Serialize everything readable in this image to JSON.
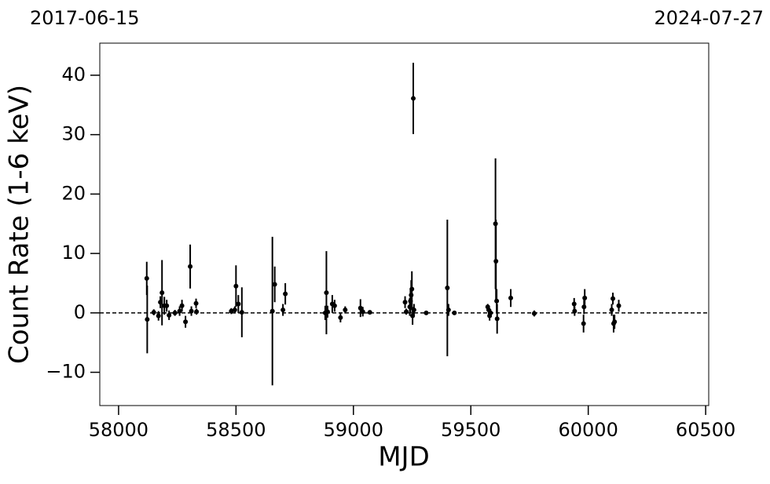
{
  "chart_data": {
    "type": "scatter",
    "xlabel": "MJD",
    "ylabel": "Count Rate (1-6 keV)",
    "annotations": [
      "2017-06-15",
      "2024-07-27"
    ],
    "xlim": [
      57920,
      60513
    ],
    "ylim": [
      -15.6,
      45.4
    ],
    "xticks": [
      58000,
      58500,
      59000,
      59500,
      60000,
      60500
    ],
    "yticks": [
      {
        "value": -10,
        "label": "−10"
      },
      0,
      10,
      20,
      30,
      40
    ],
    "hline": 0,
    "series": [
      {
        "color": "#000000",
        "x": [
          58120,
          58122,
          58150,
          58170,
          58178,
          58185,
          58195,
          58205,
          58215,
          58240,
          58260,
          58270,
          58285,
          58305,
          58310,
          58330,
          58332,
          58480,
          58495,
          58500,
          58510,
          58525,
          58655,
          58665,
          58700,
          58710,
          58880,
          58885,
          58890,
          58910,
          58920,
          58945,
          58965,
          59030,
          59040,
          59070,
          59220,
          59225,
          59240,
          59243,
          59246,
          59249,
          59252,
          59255,
          59258,
          59310,
          59400,
          59405,
          59430,
          59572,
          59576,
          59580,
          59584,
          59605,
          59607,
          59610,
          59612,
          59670,
          59770,
          59940,
          59942,
          59980,
          59982,
          59985,
          60100,
          60105,
          60108,
          60112,
          60130
        ],
        "values": [
          5.8,
          -1.1,
          0.1,
          -0.5,
          1.8,
          3.4,
          1.2,
          1.2,
          -0.4,
          0,
          0.3,
          1.2,
          -1.5,
          7.8,
          0.3,
          1.6,
          0.2,
          0.3,
          0.5,
          4.5,
          1.5,
          0.1,
          0.3,
          4.8,
          0.5,
          3.2,
          0,
          3.4,
          0.2,
          1.5,
          1.2,
          -0.8,
          0.5,
          0.8,
          0.2,
          0.1,
          1.8,
          0.2,
          1,
          2,
          3,
          4,
          -0.5,
          36.1,
          0.5,
          0,
          4.2,
          0.5,
          0,
          1,
          0.5,
          -0.5,
          0,
          15,
          8.7,
          2,
          -1,
          2.5,
          -0.1,
          1.5,
          0.3,
          -1.8,
          1,
          2.5,
          0.5,
          2.4,
          -1.8,
          -1.5,
          1.2
        ],
        "errors": [
          2.8,
          5.7,
          0.5,
          0.8,
          1,
          5.5,
          1.5,
          1,
          0.8,
          0.5,
          0.8,
          1,
          1,
          3.7,
          0.8,
          0.8,
          0.5,
          0.5,
          0.6,
          3.5,
          1.5,
          4.2,
          12.5,
          3,
          1,
          1.8,
          1.2,
          7,
          1,
          1.5,
          1,
          0.8,
          0.6,
          1.5,
          0.8,
          0.3,
          1,
          0.5,
          1.5,
          2,
          2.5,
          3,
          1.5,
          6,
          1,
          0.3,
          11.5,
          1,
          0.3,
          0.5,
          0.8,
          0.8,
          0.6,
          11,
          7,
          2,
          2.5,
          1.5,
          0.5,
          1,
          0.8,
          1.5,
          1.2,
          1.5,
          1,
          1,
          1.5,
          1.2,
          1
        ]
      }
    ]
  }
}
